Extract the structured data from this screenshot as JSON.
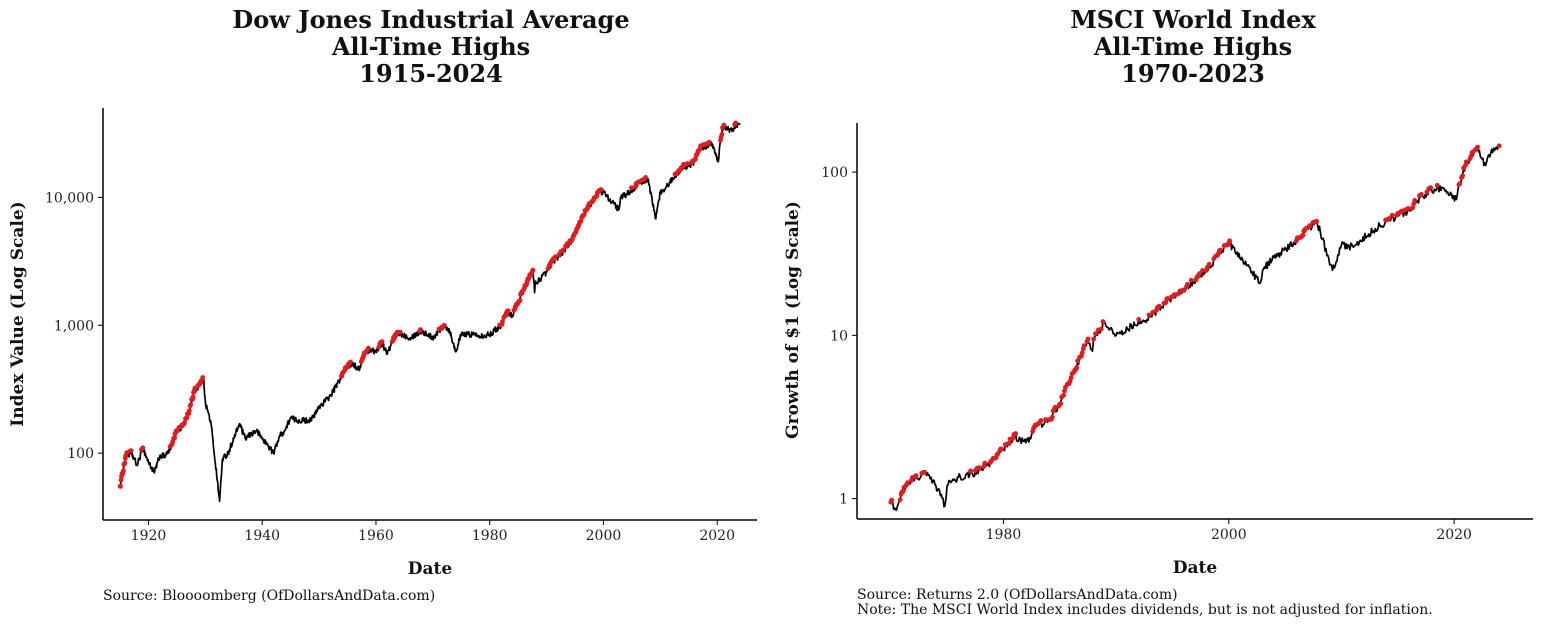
{
  "colors": {
    "line": "#000000",
    "highlight": "#e41a1c",
    "axis": "#000000"
  },
  "charts": [
    {
      "title_lines": [
        "Dow Jones Industrial Average",
        "All-Time Highs",
        "1915-2024"
      ],
      "xlabel": "Date",
      "ylabel": "Index Value (Log Scale)",
      "x_ticks": [
        "1920",
        "1940",
        "1960",
        "1980",
        "2000",
        "2020"
      ],
      "y_ticks": [
        "100",
        "1,000",
        "10,000"
      ],
      "captions": [
        "Source:  Bloooomberg (OfDollarsAndData.com)"
      ]
    },
    {
      "title_lines": [
        "MSCI World Index",
        "All-Time Highs",
        "1970-2023"
      ],
      "xlabel": "Date",
      "ylabel": "Growth of $1 (Log Scale)",
      "x_ticks": [
        "1980",
        "2000",
        "2020"
      ],
      "y_ticks": [
        "1",
        "10",
        "100"
      ],
      "captions": [
        "Source:  Returns 2.0 (OfDollarsAndData.com)",
        "Note:  The MSCI World Index includes dividends, but is not adjusted for inflation."
      ]
    }
  ],
  "chart_data": [
    {
      "type": "line",
      "title": "Dow Jones Industrial Average All-Time Highs 1915-2024",
      "xlabel": "Date",
      "ylabel": "Index Value (Log Scale)",
      "y_scale": "log",
      "xlim": [
        1912,
        2027
      ],
      "ylim": [
        30,
        50000
      ],
      "x_tick_values": [
        1920,
        1940,
        1960,
        1980,
        2000,
        2020
      ],
      "y_tick_values": [
        100,
        1000,
        10000
      ],
      "grid": false,
      "series": [
        {
          "x": [
            1915,
            1916,
            1917,
            1918,
            1919,
            1920,
            1921,
            1922,
            1923,
            1924,
            1925,
            1926,
            1927,
            1928,
            1929.7,
            1930,
            1931,
            1932.5,
            1933,
            1934,
            1935,
            1936,
            1937,
            1938,
            1939,
            1940,
            1941,
            1942,
            1943,
            1944,
            1945,
            1946,
            1947,
            1948,
            1949,
            1950,
            1952,
            1954,
            1955,
            1956,
            1957,
            1958,
            1959,
            1960,
            1961,
            1962,
            1963,
            1964,
            1966,
            1968,
            1970,
            1972,
            1973,
            1974,
            1975,
            1977,
            1979,
            1980,
            1982,
            1983,
            1984,
            1985,
            1986,
            1987.6,
            1987.9,
            1988,
            1990,
            1991,
            1993,
            1995,
            1996,
            1997,
            1998,
            1999,
            2000,
            2002.7,
            2003,
            2004,
            2006,
            2007.8,
            2009.2,
            2010,
            2011,
            2013,
            2014,
            2015,
            2016,
            2017,
            2018,
            2019,
            2020.2,
            2020.5,
            2021,
            2022,
            2022.8,
            2023,
            2024
          ],
          "y": [
            55,
            95,
            100,
            80,
            110,
            85,
            70,
            95,
            95,
            110,
            150,
            160,
            200,
            300,
            380,
            250,
            170,
            42,
            90,
            100,
            130,
            170,
            130,
            140,
            150,
            130,
            115,
            100,
            135,
            150,
            190,
            180,
            180,
            180,
            190,
            230,
            280,
            400,
            480,
            500,
            450,
            600,
            650,
            620,
            730,
            600,
            760,
            870,
            800,
            900,
            800,
            1000,
            900,
            620,
            850,
            850,
            830,
            850,
            1000,
            1250,
            1200,
            1500,
            1900,
            2700,
            1800,
            2100,
            2600,
            3100,
            3800,
            5000,
            6500,
            8000,
            9000,
            11000,
            11000,
            8000,
            10000,
            10500,
            12500,
            14000,
            6800,
            11000,
            12000,
            15500,
            17500,
            17500,
            19000,
            24000,
            25000,
            27000,
            19000,
            26000,
            35000,
            34000,
            33000,
            36000,
            38000
          ]
        }
      ]
    },
    {
      "type": "line",
      "title": "MSCI World Index All-Time Highs 1970-2023",
      "xlabel": "Date",
      "ylabel": "Growth of $1 (Log Scale)",
      "y_scale": "log",
      "xlim": [
        1967,
        2027
      ],
      "ylim": [
        0.75,
        200
      ],
      "x_tick_values": [
        1980,
        2000,
        2020
      ],
      "y_tick_values": [
        1,
        10,
        100
      ],
      "grid": false,
      "series": [
        {
          "x": [
            1970,
            1970.5,
            1971,
            1972,
            1973,
            1974,
            1974.8,
            1975,
            1976,
            1977,
            1978,
            1979,
            1980,
            1981,
            1982,
            1983,
            1984,
            1985,
            1986,
            1987.5,
            1987.9,
            1988,
            1989,
            1990,
            1991,
            1993,
            1994,
            1996,
            1998,
            2000,
            2002.8,
            2003,
            2004,
            2006,
            2007.8,
            2009.2,
            2010,
            2011,
            2013,
            2014,
            2016,
            2017,
            2018,
            2019,
            2020.2,
            2020.5,
            2021,
            2022,
            2022.8,
            2023,
            2024
          ],
          "y": [
            0.95,
            0.85,
            1.1,
            1.3,
            1.45,
            1.2,
            0.9,
            1.2,
            1.35,
            1.4,
            1.5,
            1.7,
            2.0,
            2.4,
            2.2,
            2.8,
            3.0,
            3.8,
            5.5,
            9.5,
            8.0,
            9.5,
            12.0,
            10.0,
            11.0,
            13.0,
            15.0,
            19.0,
            25.0,
            37.0,
            21.0,
            25.0,
            30.0,
            38.0,
            50.0,
            25.0,
            36.0,
            35.0,
            45.0,
            50.0,
            58.0,
            70.0,
            78.0,
            80.0,
            68.0,
            85.0,
            110.0,
            140.0,
            110.0,
            125.0,
            145.0
          ]
        }
      ]
    }
  ]
}
